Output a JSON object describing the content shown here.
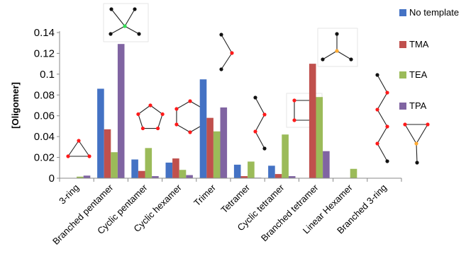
{
  "chart_data": {
    "type": "bar",
    "ylabel": "[Oligomer]",
    "ylim": [
      0,
      0.14
    ],
    "yticks": [
      0,
      0.02,
      0.04,
      0.06,
      0.08,
      0.1,
      0.12,
      0.14
    ],
    "ytick_labels": [
      "0",
      "0.02",
      "0.04",
      "0.06",
      "0.08",
      "0.1",
      "0.12",
      "0.14"
    ],
    "grid": false,
    "legend_position": "right",
    "categories": [
      "3-ring",
      "Branched pentamer",
      "Cyclic pentamer",
      "Cyclic hexamer",
      "Trimer",
      "Tetramer",
      "Cyclic tetramer",
      "Branched tetramer",
      "Linear Hexamer",
      "Branched 3-ring"
    ],
    "series": [
      {
        "name": "No template",
        "color": "#4472C4",
        "values": [
          0.0,
          0.086,
          0.018,
          0.015,
          0.095,
          0.013,
          0.012,
          0.0,
          0.0,
          0.0
        ]
      },
      {
        "name": "TMA",
        "color": "#C0504D",
        "values": [
          0.0,
          0.047,
          0.007,
          0.019,
          0.058,
          0.002,
          0.004,
          0.11,
          0.0,
          0.0
        ]
      },
      {
        "name": "TEA",
        "color": "#9BBB59",
        "values": [
          0.0015,
          0.025,
          0.029,
          0.008,
          0.045,
          0.016,
          0.042,
          0.078,
          0.009,
          0.0
        ]
      },
      {
        "name": "TPA",
        "color": "#8064A2",
        "values": [
          0.0025,
          0.129,
          0.002,
          0.003,
          0.068,
          0.0005,
          0.002,
          0.026,
          0.0,
          0.0
        ]
      }
    ],
    "molecule_icons": [
      "triangle-ring-icon",
      "branched-pentamer-icon",
      "pentagon-ring-icon",
      "hexagon-ring-icon",
      "trimer-chain-icon",
      "tetramer-chain-icon",
      "square-ring-icon",
      "branched-tetramer-icon",
      "linear-hexamer-icon",
      "branched-3-ring-icon"
    ]
  }
}
